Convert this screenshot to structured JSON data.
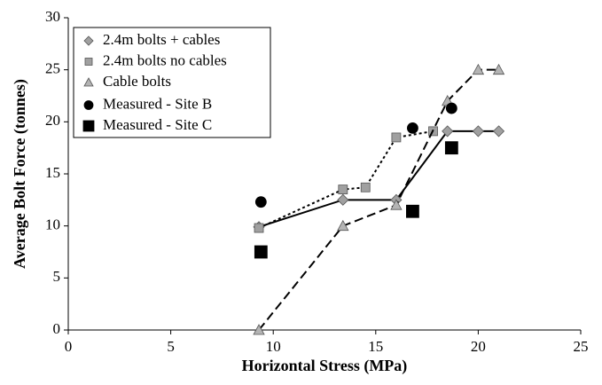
{
  "chart_data": {
    "type": "line",
    "xlabel": "Horizontal Stress (MPa)",
    "ylabel": "Average Bolt Force (tonnes)",
    "xlim": [
      0,
      25
    ],
    "xticks": [
      0,
      5,
      10,
      15,
      20,
      25
    ],
    "ylim": [
      0,
      30
    ],
    "yticks": [
      0,
      5,
      10,
      15,
      20,
      25,
      30
    ],
    "legend": "upper left",
    "series": [
      {
        "name": "2.4m bolts + cables",
        "color": "#a0a0a0",
        "marker": "diamond",
        "line_style": "solid",
        "x": [
          9.3,
          13.4,
          16,
          18.5,
          20,
          21
        ],
        "values": [
          9.9,
          12.5,
          12.5,
          19.1,
          19.1,
          19.1
        ]
      },
      {
        "name": "2.4m bolts no cables",
        "color": "#a0a0a0",
        "marker": "square",
        "line_style": "dotted",
        "x": [
          9.3,
          13.4,
          14.5,
          16,
          17.8
        ],
        "values": [
          9.8,
          13.5,
          13.7,
          18.5,
          19.1
        ]
      },
      {
        "name": "Cable bolts",
        "color": "#b4b4b4",
        "marker": "triangle",
        "line_style": "dashed",
        "x": [
          9.3,
          13.4,
          16,
          18.5,
          20,
          21
        ],
        "values": [
          0,
          10,
          12,
          22,
          25,
          25
        ]
      },
      {
        "name": "Measured - Site B",
        "color": "#000000",
        "marker": "circle",
        "line_style": "none",
        "x": [
          9.4,
          16.8,
          18.7
        ],
        "values": [
          12.3,
          19.4,
          21.3
        ]
      },
      {
        "name": "Measured - Site C",
        "color": "#000000",
        "marker": "square",
        "line_style": "none",
        "x": [
          9.4,
          16.8,
          18.7
        ],
        "values": [
          7.5,
          11.4,
          17.5
        ]
      }
    ]
  }
}
